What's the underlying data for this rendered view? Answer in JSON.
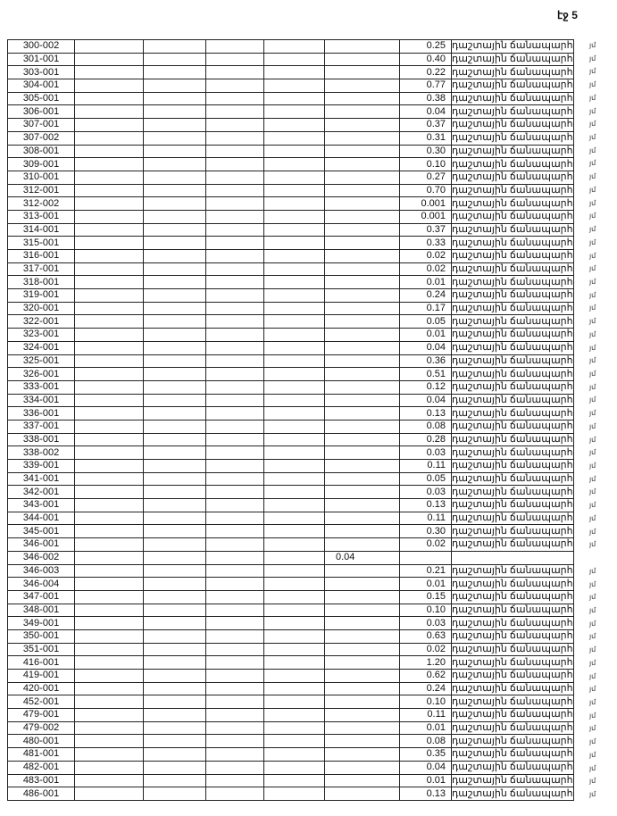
{
  "page_number": "էջ 5",
  "road_label": "դաշտային ճանապարհ",
  "margin_mark": "յմ",
  "rows": [
    {
      "id": "300-002",
      "area": "0.25"
    },
    {
      "id": "301-001",
      "area": "0.40"
    },
    {
      "id": "303-001",
      "area": "0.22"
    },
    {
      "id": "304-001",
      "area": "0.77"
    },
    {
      "id": "305-001",
      "area": "0.38"
    },
    {
      "id": "306-001",
      "area": "0.04"
    },
    {
      "id": "307-001",
      "area": "0.37"
    },
    {
      "id": "307-002",
      "area": "0.31"
    },
    {
      "id": "308-001",
      "area": "0.30"
    },
    {
      "id": "309-001",
      "area": "0.10"
    },
    {
      "id": "310-001",
      "area": "0.27"
    },
    {
      "id": "312-001",
      "area": "0.70"
    },
    {
      "id": "312-002",
      "area": "0.001"
    },
    {
      "id": "313-001",
      "area": "0.001"
    },
    {
      "id": "314-001",
      "area": "0.37"
    },
    {
      "id": "315-001",
      "area": "0.33"
    },
    {
      "id": "316-001",
      "area": "0.02"
    },
    {
      "id": "317-001",
      "area": "0.02"
    },
    {
      "id": "318-001",
      "area": "0.01"
    },
    {
      "id": "319-001",
      "area": "0.24"
    },
    {
      "id": "320-001",
      "area": "0.17"
    },
    {
      "id": "322-001",
      "area": "0.05"
    },
    {
      "id": "323-001",
      "area": "0.01"
    },
    {
      "id": "324-001",
      "area": "0.04"
    },
    {
      "id": "325-001",
      "area": "0.36"
    },
    {
      "id": "326-001",
      "area": "0.51"
    },
    {
      "id": "333-001",
      "area": "0.12"
    },
    {
      "id": "334-001",
      "area": "0.04"
    },
    {
      "id": "336-001",
      "area": "0.13"
    },
    {
      "id": "337-001",
      "area": "0.08"
    },
    {
      "id": "338-001",
      "area": "0.28"
    },
    {
      "id": "338-002",
      "area": "0.03"
    },
    {
      "id": "339-001",
      "area": "0.11"
    },
    {
      "id": "341-001",
      "area": "0.05"
    },
    {
      "id": "342-001",
      "area": "0.03"
    },
    {
      "id": "343-001",
      "area": "0.13"
    },
    {
      "id": "344-001",
      "area": "0.11"
    },
    {
      "id": "345-001",
      "area": "0.30"
    },
    {
      "id": "346-001",
      "area": "0.02"
    },
    {
      "id": "346-002",
      "other": "0.04"
    },
    {
      "id": "346-003",
      "area": "0.21"
    },
    {
      "id": "346-004",
      "area": "0.01"
    },
    {
      "id": "347-001",
      "area": "0.15"
    },
    {
      "id": "348-001",
      "area": "0.10"
    },
    {
      "id": "349-001",
      "area": "0.03"
    },
    {
      "id": "350-001",
      "area": "0.63"
    },
    {
      "id": "351-001",
      "area": "0.02"
    },
    {
      "id": "416-001",
      "area": "1.20"
    },
    {
      "id": "419-001",
      "area": "0.62"
    },
    {
      "id": "420-001",
      "area": "0.24"
    },
    {
      "id": "452-001",
      "area": "0.10"
    },
    {
      "id": "479-001",
      "area": "0.11"
    },
    {
      "id": "479-002",
      "area": "0.01"
    },
    {
      "id": "480-001",
      "area": "0.08"
    },
    {
      "id": "481-001",
      "area": "0.35"
    },
    {
      "id": "482-001",
      "area": "0.04"
    },
    {
      "id": "483-001",
      "area": "0.01"
    },
    {
      "id": "486-001",
      "area": "0.13"
    }
  ]
}
